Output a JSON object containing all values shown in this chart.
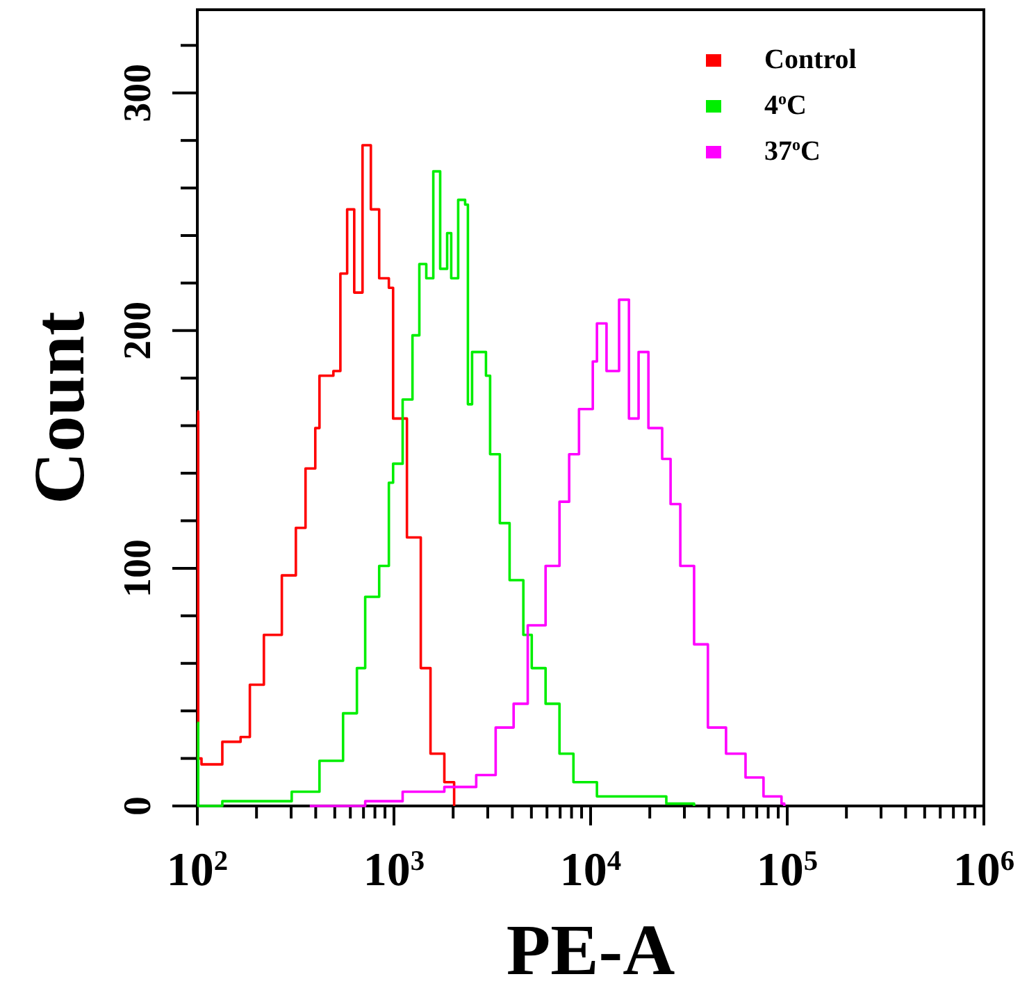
{
  "chart_data": {
    "type": "step",
    "xlabel": "PE-A",
    "ylabel": "Count",
    "log": "x",
    "xlim": [
      100,
      1000000
    ],
    "ylim": [
      0,
      335
    ],
    "xticks": [
      {
        "value": 100,
        "label": "10$^{2}$"
      },
      {
        "value": 200,
        "label": null
      },
      {
        "value": 300,
        "label": null
      },
      {
        "value": 400,
        "label": null
      },
      {
        "value": 500,
        "label": null
      },
      {
        "value": 600,
        "label": null
      },
      {
        "value": 700,
        "label": null
      },
      {
        "value": 800,
        "label": null
      },
      {
        "value": 900,
        "label": null
      },
      {
        "value": 1000,
        "label": "10$^{3}$"
      },
      {
        "value": 2000,
        "label": null
      },
      {
        "value": 3000,
        "label": null
      },
      {
        "value": 4000,
        "label": null
      },
      {
        "value": 5000,
        "label": null
      },
      {
        "value": 6000,
        "label": null
      },
      {
        "value": 7000,
        "label": null
      },
      {
        "value": 8000,
        "label": null
      },
      {
        "value": 9000,
        "label": null
      },
      {
        "value": 10000,
        "label": "10$^{4}$"
      },
      {
        "value": 20000,
        "label": null
      },
      {
        "value": 30000,
        "label": null
      },
      {
        "value": 40000,
        "label": null
      },
      {
        "value": 50000,
        "label": null
      },
      {
        "value": 60000,
        "label": null
      },
      {
        "value": 70000,
        "label": null
      },
      {
        "value": 80000,
        "label": null
      },
      {
        "value": 90000,
        "label": null
      },
      {
        "value": 100000,
        "label": "10$^{5}$"
      },
      {
        "value": 200000,
        "label": null
      },
      {
        "value": 300000,
        "label": null
      },
      {
        "value": 400000,
        "label": null
      },
      {
        "value": 500000,
        "label": null
      },
      {
        "value": 600000,
        "label": null
      },
      {
        "value": 700000,
        "label": null
      },
      {
        "value": 800000,
        "label": null
      },
      {
        "value": 900000,
        "label": null
      },
      {
        "value": 1000000,
        "label": "10$^{6}$"
      }
    ],
    "yticks": [
      0,
      {
        "value": 20,
        "label": null
      },
      {
        "value": 40,
        "label": null
      },
      {
        "value": 60,
        "label": null
      },
      {
        "value": 80,
        "label": null
      },
      100,
      {
        "value": 120,
        "label": null
      },
      {
        "value": 140,
        "label": null
      },
      {
        "value": 160,
        "label": null
      },
      {
        "value": 180,
        "label": null
      },
      200,
      {
        "value": 220,
        "label": null
      },
      {
        "value": 240,
        "label": null
      },
      {
        "value": 260,
        "label": null
      },
      {
        "value": 280,
        "label": null
      },
      300,
      {
        "value": 320,
        "label": null
      }
    ],
    "legend": "top right",
    "grid": false,
    "series": [
      {
        "name": "Control",
        "color": "#ff0000",
        "x": [
          100,
          101,
          105,
          134,
          166,
          185,
          218,
          269,
          317,
          355,
          398,
          418,
          492,
          534,
          578,
          628,
          692,
          763,
          841,
          942,
          990,
          1164,
          1369,
          1534,
          1804,
          2023
        ],
        "values": [
          166,
          20,
          17.5,
          27,
          29,
          51,
          72,
          97,
          117,
          142,
          159,
          181,
          183,
          224,
          251,
          216,
          278,
          251,
          222,
          218,
          163,
          113,
          58,
          22,
          10,
          0
        ]
      },
      {
        "name": "4$^{o}$C",
        "color": "#00ee00",
        "x": [
          100,
          101,
          134,
          302,
          418,
          551,
          648,
          714,
          841,
          942,
          990,
          1107,
          1242,
          1346,
          1460,
          1585,
          1718,
          1864,
          1955,
          2121,
          2301,
          2377,
          2496,
          2937,
          3083,
          3455,
          3873,
          4550,
          5020,
          5903,
          6946,
          8180,
          10770,
          24270,
          33600
        ],
        "values": [
          35,
          0,
          2,
          6,
          19,
          39,
          58,
          88,
          101,
          136,
          144,
          171,
          198,
          228,
          222,
          267,
          226,
          241,
          222,
          255,
          253,
          169,
          191,
          181,
          148,
          119,
          95,
          72,
          58,
          43,
          22,
          10,
          4,
          1,
          0
        ]
      },
      {
        "name": "37$^{o}$C",
        "color": "#ff00ff",
        "x": [
          373,
          714,
          1107,
          1804,
          2620,
          3290,
          4060,
          4790,
          5903,
          6946,
          7780,
          8730,
          10260,
          10770,
          12050,
          13960,
          15670,
          17540,
          19680,
          23120,
          25510,
          28590,
          33600,
          39500,
          48840,
          61360,
          75740,
          93500,
          96600
        ],
        "values": [
          0,
          2,
          6,
          8,
          13,
          33,
          43,
          76,
          101,
          128,
          148,
          167,
          187,
          203,
          183,
          213,
          163,
          191,
          159,
          146,
          127,
          101,
          68,
          33,
          22,
          12,
          4,
          1,
          0
        ]
      }
    ]
  }
}
